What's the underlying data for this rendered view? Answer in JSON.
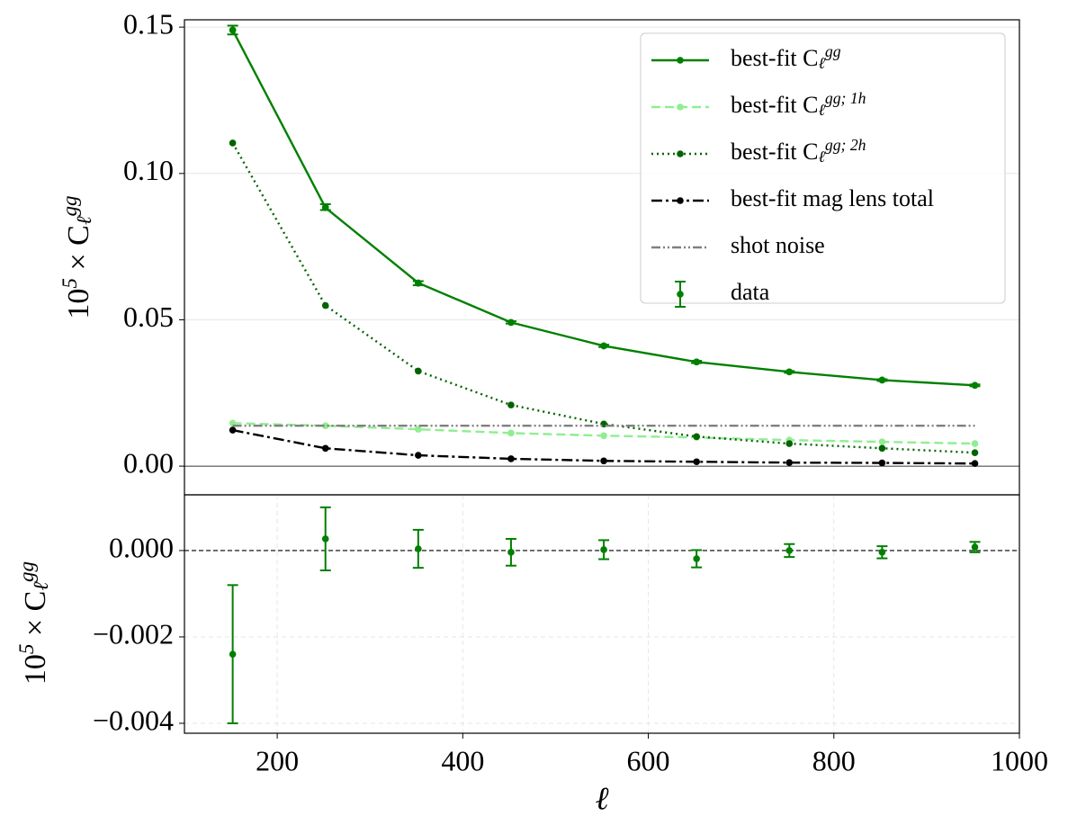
{
  "chart_data": [
    {
      "type": "line",
      "ylabel": [
        [
          "10",
          ""
        ],
        [
          "5",
          "sup"
        ],
        [
          " × C",
          ""
        ],
        [
          "ℓ",
          "sub"
        ],
        [
          "gg",
          "sup"
        ]
      ],
      "x": [
        152,
        252,
        352,
        452,
        552,
        652,
        752,
        852,
        952
      ],
      "xlim": [
        100,
        1000
      ],
      "ylim": [
        -0.0098,
        0.1525
      ],
      "yticks": [
        {
          "value": 0,
          "label": "0.00"
        },
        {
          "value": 0.05,
          "label": "0.05"
        },
        {
          "value": 0.1,
          "label": "0.10"
        },
        {
          "value": 0.15,
          "label": "0.15"
        }
      ],
      "grid": "y",
      "reference_line": 0,
      "legend": "upper right",
      "series": [
        {
          "name": [
            [
              "best-fit C",
              ""
            ],
            [
              "ℓ",
              "sub"
            ],
            [
              "gg",
              "sup"
            ]
          ],
          "color": "#008000",
          "style": "solid",
          "marker": true,
          "values": [
            0.149,
            0.0883,
            0.0626,
            0.0491,
            0.0411,
            0.0356,
            0.0322,
            0.0294,
            0.0276
          ]
        },
        {
          "name": [
            [
              "best-fit C",
              ""
            ],
            [
              "ℓ",
              "sub"
            ],
            [
              "gg; 1h",
              "sup"
            ]
          ],
          "color": "#90ee90",
          "style": "dashed",
          "marker": true,
          "values": [
            0.0147,
            0.0138,
            0.0126,
            0.0113,
            0.0104,
            0.0098,
            0.0089,
            0.0083,
            0.0077
          ]
        },
        {
          "name": [
            [
              "best-fit C",
              ""
            ],
            [
              "ℓ",
              "sub"
            ],
            [
              "gg; 2h",
              "sup"
            ]
          ],
          "color": "#006400",
          "style": "dotted",
          "marker": true,
          "values": [
            0.1104,
            0.0549,
            0.0325,
            0.0209,
            0.0144,
            0.0101,
            0.0077,
            0.0061,
            0.0046
          ]
        },
        {
          "name": [
            [
              "best-fit mag lens total",
              ""
            ]
          ],
          "color": "#000000",
          "style": "dashdot",
          "marker": true,
          "values": [
            0.0123,
            0.0061,
            0.0037,
            0.0025,
            0.0018,
            0.0015,
            0.0012,
            0.0011,
            0.0009
          ]
        },
        {
          "name": [
            [
              "shot noise",
              ""
            ]
          ],
          "color": "#808080",
          "style": "dashdotdot",
          "marker": false,
          "values": [
            0.0138,
            0.0138,
            0.0138,
            0.0138,
            0.0138,
            0.0138,
            0.0138,
            0.0138,
            0.0138
          ]
        },
        {
          "name": [
            [
              "data",
              ""
            ]
          ],
          "color": "#008000",
          "style": "errorbar",
          "marker": true,
          "values": [
            0.149,
            0.0885,
            0.0625,
            0.0491,
            0.0411,
            0.0356,
            0.0322,
            0.0294,
            0.0276
          ],
          "errors": [
            0.0015,
            0.001,
            0.0007,
            0.0004,
            0.0004,
            0.0004,
            0.0003,
            0.0003,
            0.0003
          ]
        }
      ]
    },
    {
      "type": "errorbar",
      "ylabel": [
        [
          "10",
          ""
        ],
        [
          "5",
          "sup"
        ],
        [
          " × C",
          ""
        ],
        [
          "ℓ",
          "sub"
        ],
        [
          "gg",
          "sup"
        ]
      ],
      "xlabel": "ℓ",
      "x": [
        152,
        252,
        352,
        452,
        552,
        652,
        752,
        852,
        952
      ],
      "xlim": [
        100,
        1000
      ],
      "xticks": [
        200,
        400,
        600,
        800,
        1000
      ],
      "ylim": [
        -0.00423,
        0.00129
      ],
      "yticks": [
        {
          "value": -0.004,
          "label": "−0.004"
        },
        {
          "value": -0.002,
          "label": "−0.002"
        },
        {
          "value": 0,
          "label": "0.000"
        }
      ],
      "grid": "xy",
      "reference_line": 0,
      "series": [
        {
          "color": "#008000",
          "values": [
            -0.0024,
            0.00027,
            4e-05,
            -4e-05,
            2e-05,
            -0.00019,
            0,
            -4e-05,
            8e-05
          ],
          "errors": [
            0.0016,
            0.00073,
            0.00044,
            0.00031,
            0.00022,
            0.0002,
            0.00015,
            0.00014,
            0.00012
          ]
        }
      ]
    }
  ]
}
